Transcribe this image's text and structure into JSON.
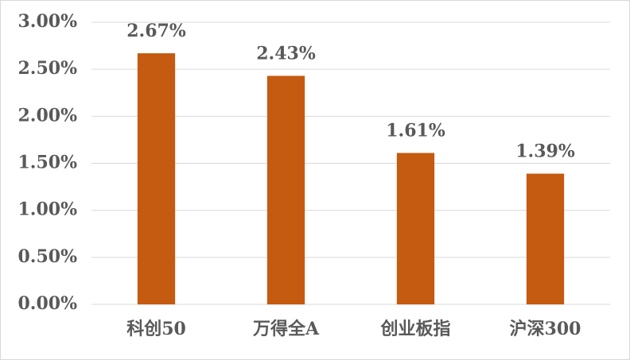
{
  "chart_data": {
    "type": "bar",
    "categories": [
      "科创50",
      "万得全A",
      "创业板指",
      "沪深300"
    ],
    "values": [
      2.67,
      2.43,
      1.61,
      1.39
    ],
    "value_labels": [
      "2.67%",
      "2.43%",
      "1.61%",
      "1.39%"
    ],
    "color": "#c55a11",
    "ylim": [
      0,
      3
    ],
    "yticks": [
      {
        "value": 0,
        "label": "0.00%"
      },
      {
        "value": 0.5,
        "label": "0.50%"
      },
      {
        "value": 1,
        "label": "1.00%"
      },
      {
        "value": 1.5,
        "label": "1.50%"
      },
      {
        "value": 2,
        "label": "2.00%"
      },
      {
        "value": 2.5,
        "label": "2.50%"
      },
      {
        "value": 3,
        "label": "3.00%"
      }
    ],
    "grid": true
  }
}
